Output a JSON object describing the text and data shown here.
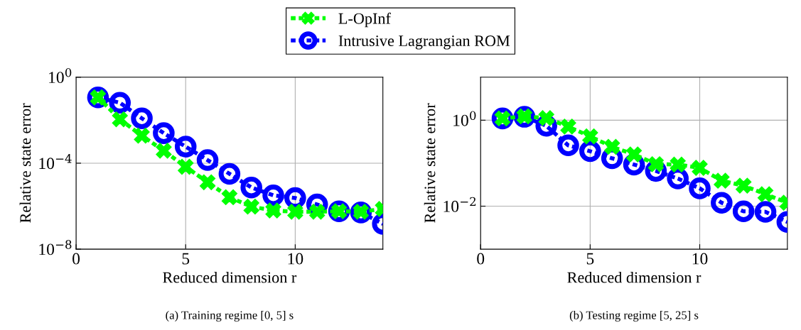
{
  "chart_data": [
    {
      "type": "line",
      "xlabel": "Reduced dimension r",
      "ylabel": "Relative state error",
      "annotations": [
        "(a) Training regime [0, 5] s"
      ],
      "x": [
        1,
        2,
        3,
        4,
        5,
        6,
        7,
        8,
        9,
        10,
        11,
        12,
        13,
        14
      ],
      "log": "y",
      "xlim": [
        0,
        14
      ],
      "xticks": [
        0,
        5,
        10
      ],
      "ylim": [
        1e-08,
        1
      ],
      "yticks": [
        {
          "value": 1e-08,
          "label": "10$^{−8}$"
        },
        {
          "value": 0.0001,
          "label": "10$^{−4}$"
        },
        {
          "value": 1,
          "label": "10$^{0}$"
        }
      ],
      "grid": true,
      "legend": "top",
      "line_style": "dashed",
      "series": [
        {
          "name": "L-OpInf",
          "color": "#00ff00",
          "marker": "cross",
          "values": [
            0.115,
            0.011,
            0.0019,
            0.00038,
            6.8e-05,
            1.3e-05,
            2.6e-06,
            9.5e-07,
            6.3e-07,
            5.5e-07,
            5.5e-07,
            5.8e-07,
            5.5e-07,
            7.4e-07
          ]
        },
        {
          "name": "Intrusive Lagrangian ROM",
          "color": "#0000ff",
          "marker": "circle",
          "values": [
            0.115,
            0.065,
            0.0123,
            0.0025,
            0.00059,
            0.00014,
            3.2e-05,
            7.4e-06,
            3.2e-06,
            2.4e-06,
            1.2e-06,
            5.8e-07,
            5.1e-07,
            1.5e-07
          ]
        }
      ]
    },
    {
      "type": "line",
      "xlabel": "Reduced dimension r",
      "ylabel": "Relative state error",
      "annotations": [
        "(b) Testing regime [5, 25] s"
      ],
      "x": [
        1,
        2,
        3,
        4,
        5,
        6,
        7,
        8,
        9,
        10,
        11,
        12,
        13,
        14
      ],
      "log": "y",
      "xlim": [
        0,
        14
      ],
      "xticks": [
        0,
        5,
        10
      ],
      "ylim": [
        0.001,
        10
      ],
      "yticks": [
        {
          "value": 0.01,
          "label": "10$^{−2}$"
        },
        {
          "value": 1,
          "label": "10$^{0}$"
        }
      ],
      "grid": true,
      "line_style": "dashed",
      "series": [
        {
          "color": "#00ff00",
          "marker": "cross",
          "values": [
            1.1,
            1.23,
            1.12,
            0.71,
            0.42,
            0.24,
            0.16,
            0.095,
            0.093,
            0.078,
            0.039,
            0.03,
            0.019,
            0.012
          ]
        },
        {
          "color": "#0000ff",
          "marker": "circle",
          "values": [
            1.1,
            1.2,
            0.74,
            0.26,
            0.19,
            0.13,
            0.093,
            0.066,
            0.044,
            0.026,
            0.012,
            0.0076,
            0.0074,
            0.0043
          ]
        }
      ]
    }
  ]
}
